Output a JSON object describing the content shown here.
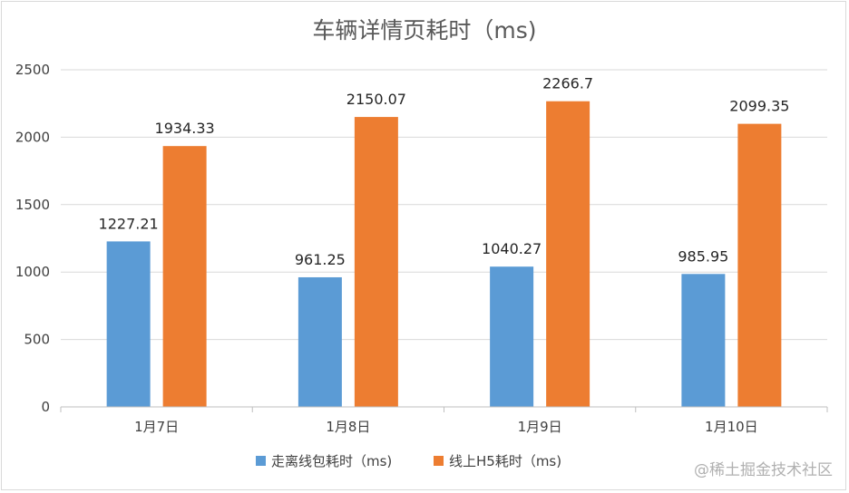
{
  "chart_data": {
    "type": "bar",
    "title": "车辆详情页耗时（ms)",
    "xlabel": "",
    "ylabel": "",
    "categories": [
      "1月7日",
      "1月8日",
      "1月9日",
      "1月10日"
    ],
    "series": [
      {
        "name": "走离线包耗时（ms)",
        "color": "#5b9bd5",
        "values": [
          1227.21,
          961.25,
          1040.27,
          985.95
        ]
      },
      {
        "name": "线上H5耗时（ms)",
        "color": "#ed7d31",
        "values": [
          1934.33,
          2150.07,
          2266.7,
          2099.35
        ]
      }
    ],
    "ylim": [
      0,
      2500
    ],
    "yticks": [
      0,
      500,
      1000,
      1500,
      2000,
      2500
    ],
    "grid": true,
    "legend": "bottom"
  },
  "watermark": "@稀土掘金技术社区"
}
